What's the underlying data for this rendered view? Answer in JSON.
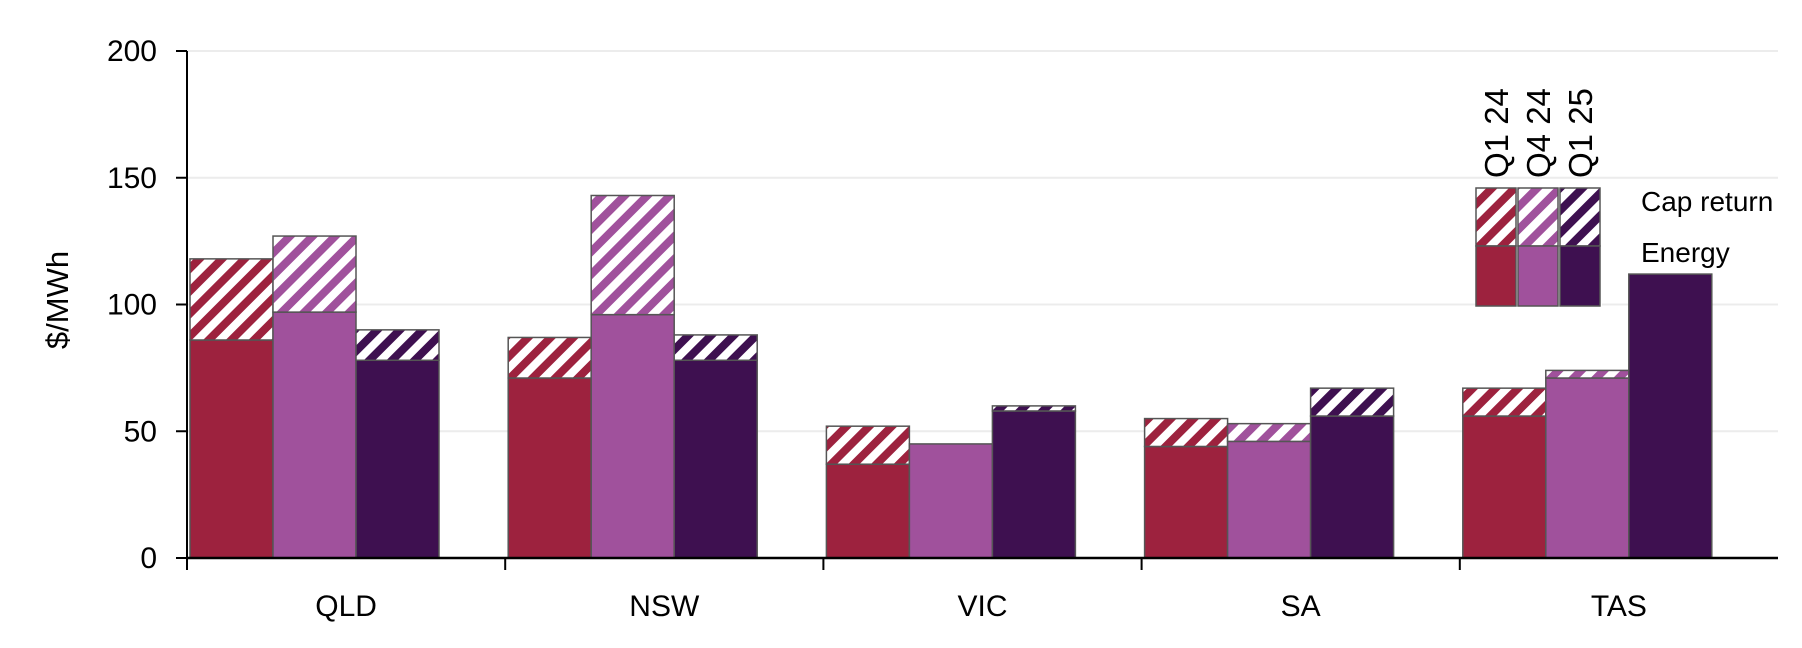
{
  "chart_data": {
    "type": "bar",
    "stacked": true,
    "categories": [
      "QLD",
      "NSW",
      "VIC",
      "SA",
      "TAS"
    ],
    "ylabel": "$/MWh",
    "xlabel": "",
    "ylim": [
      0,
      200
    ],
    "yticks": [
      0,
      50,
      100,
      150,
      200
    ],
    "grid": true,
    "legend_position": "top-right",
    "stack_labels": [
      "Cap return",
      "Energy"
    ],
    "series": [
      {
        "name": "Q1 24",
        "color": "#9d223e",
        "energy": [
          86,
          71,
          37,
          44,
          56
        ],
        "cap_return": [
          32,
          16,
          15,
          11,
          11
        ]
      },
      {
        "name": "Q4 24",
        "color": "#a0519c",
        "energy": [
          97,
          96,
          45,
          46,
          71
        ],
        "cap_return": [
          30,
          47,
          0,
          7,
          3
        ]
      },
      {
        "name": "Q1 25",
        "color": "#3e1050",
        "energy": [
          78,
          78,
          58,
          56,
          112
        ],
        "cap_return": [
          12,
          10,
          2,
          11,
          0
        ]
      }
    ]
  }
}
